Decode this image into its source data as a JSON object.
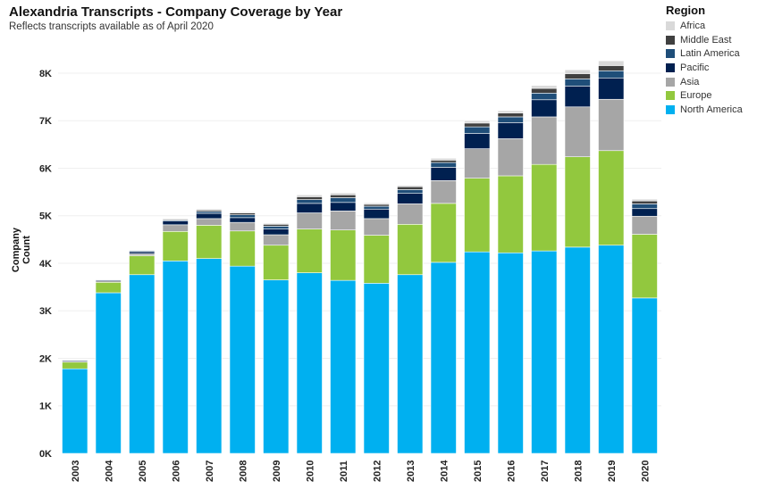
{
  "chart_data": {
    "type": "bar",
    "stacked": true,
    "title": "Alexandria Transcripts - Company Coverage by Year",
    "subtitle": "Reflects transcripts available as of April 2020",
    "xlabel": "",
    "ylabel": "Company Count",
    "ylim": [
      0,
      8600
    ],
    "yticks": [
      0,
      1000,
      2000,
      3000,
      4000,
      5000,
      6000,
      7000,
      8000
    ],
    "ytick_labels": [
      "0K",
      "1K",
      "2K",
      "3K",
      "4K",
      "5K",
      "6K",
      "7K",
      "8K"
    ],
    "grid": true,
    "legend_title": "Region",
    "legend_position": "top-right",
    "categories": [
      "2003",
      "2004",
      "2005",
      "2006",
      "2007",
      "2008",
      "2009",
      "2010",
      "2011",
      "2012",
      "2013",
      "2014",
      "2015",
      "2016",
      "2017",
      "2018",
      "2019",
      "2020"
    ],
    "series": [
      {
        "name": "North America",
        "color": "#00b0f0",
        "values": [
          1780,
          3380,
          3760,
          4050,
          4100,
          3940,
          3650,
          3800,
          3640,
          3580,
          3760,
          4020,
          4240,
          4220,
          4260,
          4340,
          4380,
          3270
        ]
      },
      {
        "name": "Europe",
        "color": "#92c83e",
        "values": [
          140,
          220,
          400,
          620,
          700,
          740,
          730,
          920,
          1060,
          1010,
          1060,
          1240,
          1550,
          1620,
          1820,
          1900,
          1990,
          1340
        ]
      },
      {
        "name": "Asia",
        "color": "#a6a6a6",
        "values": [
          20,
          30,
          40,
          140,
          140,
          180,
          220,
          340,
          400,
          350,
          430,
          480,
          620,
          780,
          1000,
          1050,
          1080,
          380
        ]
      },
      {
        "name": "Pacific",
        "color": "#002050",
        "values": [
          20,
          20,
          40,
          80,
          110,
          100,
          120,
          200,
          180,
          200,
          220,
          280,
          320,
          340,
          360,
          440,
          450,
          160
        ]
      },
      {
        "name": "Latin America",
        "color": "#1f4e79",
        "values": [
          10,
          10,
          20,
          20,
          40,
          60,
          60,
          80,
          100,
          60,
          80,
          100,
          140,
          120,
          140,
          150,
          150,
          100
        ]
      },
      {
        "name": "Middle East",
        "color": "#404040",
        "values": [
          5,
          5,
          10,
          20,
          30,
          40,
          40,
          60,
          60,
          40,
          60,
          50,
          80,
          80,
          100,
          110,
          110,
          60
        ]
      },
      {
        "name": "Africa",
        "color": "#d9d9d9",
        "values": [
          5,
          5,
          10,
          10,
          20,
          20,
          20,
          40,
          40,
          30,
          30,
          40,
          50,
          50,
          60,
          80,
          100,
          40
        ]
      }
    ]
  }
}
